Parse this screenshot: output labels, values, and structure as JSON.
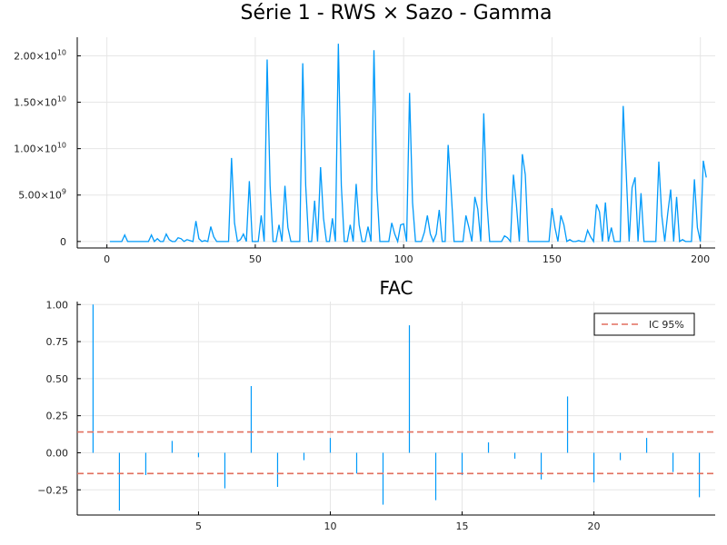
{
  "chart_data": [
    {
      "type": "line",
      "title": "Série 1 - RWS × Sazo - Gamma",
      "xlim": [
        -10,
        205
      ],
      "ylim": [
        -700000000.0,
        22000000000.0
      ],
      "grid": true,
      "series_color": "#009AFA",
      "xticks": [
        0,
        50,
        100,
        150,
        200
      ],
      "yticks": [
        {
          "value": 0,
          "mant": "0",
          "exp": ""
        },
        {
          "value": 5000000000.0,
          "mant": "5.00×10",
          "exp": "9"
        },
        {
          "value": 10000000000.0,
          "mant": "1.00×10",
          "exp": "10"
        },
        {
          "value": 15000000000.0,
          "mant": "1.50×10",
          "exp": "10"
        },
        {
          "value": 20000000000.0,
          "mant": "2.00×10",
          "exp": "10"
        }
      ],
      "x_start": 1,
      "values": [
        0,
        0,
        0,
        0,
        0,
        700000000.0,
        0,
        0,
        0,
        0,
        0,
        0,
        0,
        0,
        700000000.0,
        0,
        300000000.0,
        0,
        0,
        800000000.0,
        200000000.0,
        0,
        0,
        400000000.0,
        300000000.0,
        0,
        200000000.0,
        100000000.0,
        0,
        2200000000.0,
        300000000.0,
        0,
        100000000.0,
        0,
        1600000000.0,
        500000000.0,
        0,
        0,
        0,
        0,
        0,
        9000000000.0,
        2000000000.0,
        0,
        200000000.0,
        800000000.0,
        0,
        6500000000.0,
        0,
        0,
        0,
        2800000000.0,
        0,
        19600000000.0,
        6000000000.0,
        0,
        0,
        1800000000.0,
        0,
        6000000000.0,
        1500000000.0,
        0,
        0,
        0,
        0,
        19200000000.0,
        6000000000.0,
        0,
        0,
        4400000000.0,
        0,
        8000000000.0,
        2500000000.0,
        0,
        0,
        2500000000.0,
        0,
        21300000000.0,
        6000000000.0,
        0,
        0,
        1800000000.0,
        0,
        6200000000.0,
        1800000000.0,
        0,
        0,
        1600000000.0,
        0,
        20600000000.0,
        5500000000.0,
        0,
        0,
        0,
        0,
        2000000000.0,
        800000000.0,
        0,
        1800000000.0,
        1900000000.0,
        0,
        16000000000.0,
        4200000000.0,
        0,
        0,
        0,
        1000000000.0,
        2800000000.0,
        800000000.0,
        0,
        800000000.0,
        3400000000.0,
        0,
        0,
        10400000000.0,
        5500000000.0,
        0,
        0,
        0,
        0,
        2800000000.0,
        1500000000.0,
        0,
        4800000000.0,
        3500000000.0,
        0,
        13800000000.0,
        4500000000.0,
        0,
        0,
        0,
        0,
        0,
        600000000.0,
        400000000.0,
        0,
        7200000000.0,
        4000000000.0,
        0,
        9400000000.0,
        7200000000.0,
        0,
        0,
        0,
        0,
        0,
        0,
        0,
        0,
        3600000000.0,
        1500000000.0,
        0,
        2800000000.0,
        1800000000.0,
        0,
        200000000.0,
        0,
        0,
        100000000.0,
        0,
        0,
        1200000000.0,
        500000000.0,
        0,
        4000000000.0,
        3200000000.0,
        0,
        4200000000.0,
        0,
        1500000000.0,
        0,
        0,
        0,
        14600000000.0,
        7500000000.0,
        0,
        5800000000.0,
        6900000000.0,
        0,
        5200000000.0,
        0,
        0,
        0,
        0,
        0,
        8600000000.0,
        2800000000.0,
        0,
        3000000000.0,
        5600000000.0,
        0,
        4800000000.0,
        0,
        200000000.0,
        0,
        0,
        0,
        6700000000.0,
        1500000000.0,
        0,
        8700000000.0,
        6900000000.0
      ]
    },
    {
      "type": "bar",
      "title": "FAC",
      "xlim": [
        0.4,
        24.6
      ],
      "ylim": [
        -0.42,
        1.02
      ],
      "grid": true,
      "series_color": "#009AFA",
      "ci_color": "#E26F5E",
      "ci": 0.14,
      "legend": {
        "label": "IC 95%",
        "placement": "top-right"
      },
      "xticks": [
        5,
        10,
        15,
        20
      ],
      "yticks": [
        {
          "value": -0.25,
          "label": "−0.25"
        },
        {
          "value": 0,
          "label": "0.00"
        },
        {
          "value": 0.25,
          "label": "0.25"
        },
        {
          "value": 0.5,
          "label": "0.50"
        },
        {
          "value": 0.75,
          "label": "0.75"
        },
        {
          "value": 1.0,
          "label": "1.00"
        }
      ],
      "lags": [
        1,
        2,
        3,
        4,
        5,
        6,
        7,
        8,
        9,
        10,
        11,
        12,
        13,
        14,
        15,
        16,
        17,
        18,
        19,
        20,
        21,
        22,
        23,
        24
      ],
      "values": [
        1.0,
        -0.39,
        -0.15,
        0.08,
        -0.03,
        -0.24,
        0.45,
        -0.23,
        -0.05,
        0.1,
        -0.14,
        -0.35,
        0.86,
        -0.32,
        -0.15,
        0.07,
        -0.04,
        -0.18,
        0.38,
        -0.2,
        -0.05,
        0.1,
        -0.13,
        -0.3
      ]
    }
  ]
}
